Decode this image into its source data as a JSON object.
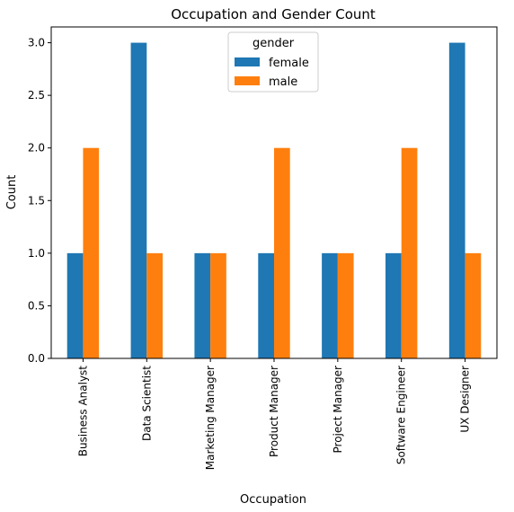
{
  "chart_data": {
    "type": "bar",
    "title": "Occupation and Gender Count",
    "xlabel": "Occupation",
    "ylabel": "Count",
    "categories": [
      "Business Analyst",
      "Data Scientist",
      "Marketing Manager",
      "Product Manager",
      "Project Manager",
      "Software Engineer",
      "UX Designer"
    ],
    "series": [
      {
        "name": "female",
        "color": "#1f77b4",
        "values": [
          1,
          3,
          1,
          1,
          1,
          1,
          3
        ]
      },
      {
        "name": "male",
        "color": "#ff7f0e",
        "values": [
          2,
          1,
          1,
          2,
          1,
          2,
          1
        ]
      }
    ],
    "ylim": [
      0,
      3.15
    ],
    "yticks": [
      "0.0",
      "0.5",
      "1.0",
      "1.5",
      "2.0",
      "2.5",
      "3.0"
    ],
    "legend": {
      "title": "gender",
      "placement": "top-center"
    },
    "grid": false
  }
}
